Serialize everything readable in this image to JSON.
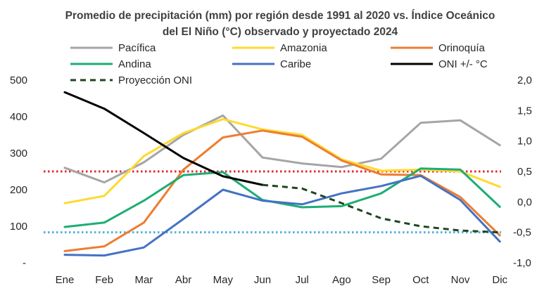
{
  "chart_data": {
    "type": "line",
    "title_line1": "Promedio de precipitación (mm) por región desde 1991 al 2020 vs. Índice Oceánico",
    "title_line2": "del El Niño (°C) observado y proyectado 2024",
    "categories": [
      "Ene",
      "Feb",
      "Mar",
      "Abr",
      "May",
      "Jun",
      "Jul",
      "Ago",
      "Sep",
      "Oct",
      "Nov",
      "Dic"
    ],
    "left_axis": {
      "ylim": [
        0,
        500
      ],
      "tick_labels": [
        "-",
        "100",
        "200",
        "300",
        "400",
        "500"
      ]
    },
    "right_axis": {
      "ylim": [
        -1.0,
        2.0
      ],
      "tick_labels": [
        "-1,0",
        "-0,5",
        "0,0",
        "0,5",
        "1,0",
        "1,5",
        "2,0"
      ]
    },
    "legend_placement": "top",
    "series": [
      {
        "name": "Pacífica",
        "axis": "left",
        "color": "#A5A5A5",
        "values": [
          260,
          220,
          275,
          350,
          403,
          288,
          272,
          262,
          285,
          383,
          390,
          322
        ]
      },
      {
        "name": "Amazonia",
        "axis": "left",
        "color": "#FFD92F",
        "values": [
          163,
          183,
          292,
          355,
          393,
          365,
          350,
          283,
          252,
          255,
          250,
          208
        ]
      },
      {
        "name": "Orinoquía",
        "axis": "left",
        "color": "#ED7D31",
        "values": [
          32,
          45,
          110,
          255,
          343,
          362,
          345,
          280,
          242,
          240,
          180,
          75
        ]
      },
      {
        "name": "Andina",
        "axis": "left",
        "color": "#1DAD75",
        "values": [
          98,
          110,
          170,
          240,
          248,
          172,
          152,
          155,
          190,
          258,
          255,
          153
        ]
      },
      {
        "name": "Caribe",
        "axis": "left",
        "color": "#4472C4",
        "values": [
          22,
          20,
          42,
          120,
          200,
          170,
          160,
          190,
          210,
          238,
          172,
          58
        ]
      },
      {
        "name": "ONI +/- °C",
        "axis": "right",
        "color": "#000000",
        "values": [
          1.8,
          1.53,
          1.13,
          0.72,
          0.42,
          0.28,
          null,
          null,
          null,
          null,
          null,
          null
        ]
      },
      {
        "name": "Proyección ONI",
        "axis": "right",
        "color": "#1E4620",
        "dashed": true,
        "values": [
          null,
          null,
          null,
          null,
          null,
          0.28,
          0.22,
          -0.02,
          -0.27,
          -0.4,
          -0.47,
          -0.5
        ]
      }
    ],
    "reference_lines": [
      {
        "axis": "right",
        "value": 0.5,
        "color": "#E0282C"
      },
      {
        "axis": "right",
        "value": -0.5,
        "color": "#4FB0E0"
      }
    ]
  }
}
